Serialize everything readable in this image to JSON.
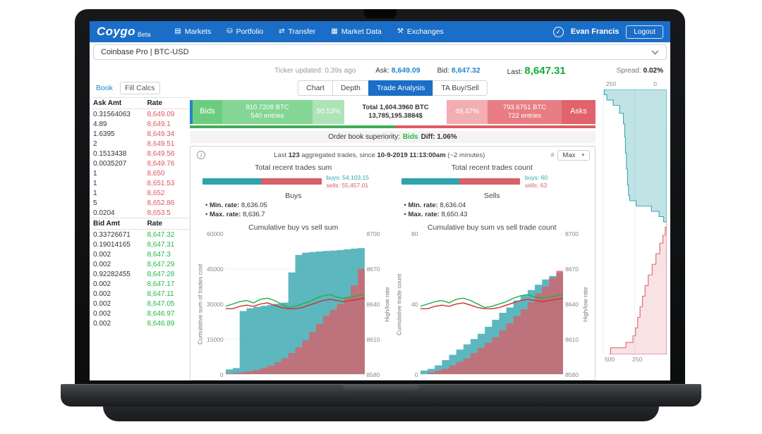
{
  "icons": {
    "check": "✓",
    "info": "i",
    "caret": "▾"
  },
  "nav": {
    "logo": "Coygo",
    "beta": "Beta",
    "items": [
      {
        "label": "Markets",
        "icon": "▤"
      },
      {
        "label": "Portfolio",
        "icon": "⛁"
      },
      {
        "label": "Transfer",
        "icon": "⇄"
      },
      {
        "label": "Market Data",
        "icon": "▦"
      },
      {
        "label": "Exchanges",
        "icon": "⚒"
      }
    ],
    "user": "Evan Francis",
    "logout": "Logout"
  },
  "selector": {
    "value": "Coinbase Pro | BTC-USD"
  },
  "ticker": {
    "updated": "Ticker updated: 0.39s ago",
    "ask_label": "Ask:",
    "ask_value": "8,649.09",
    "bid_label": "Bid:",
    "bid_value": "8,647.32",
    "last_label": "Last:",
    "last_value": "8,647.31",
    "spread_label": "Spread:",
    "spread_value": "0.02%"
  },
  "book": {
    "tabs": [
      "Book",
      "Fill Calcs"
    ],
    "ask_headers": [
      "Ask Amt",
      "Rate"
    ],
    "ask_rows": [
      [
        "0.31564063",
        "8,649.09"
      ],
      [
        "4.89",
        "8,649.1"
      ],
      [
        "1.6395",
        "8,649.34"
      ],
      [
        "2",
        "8,649.51"
      ],
      [
        "0.1513438",
        "8,649.56"
      ],
      [
        "0.0035207",
        "8,649.76"
      ],
      [
        "1",
        "8,650"
      ],
      [
        "1",
        "8,651.53"
      ],
      [
        "1",
        "8,652"
      ],
      [
        "5",
        "8,652.86"
      ],
      [
        "0.0204",
        "8,653.5"
      ]
    ],
    "bid_headers": [
      "Bid Amt",
      "Rate"
    ],
    "bid_rows": [
      [
        "0.33726671",
        "8,647.32"
      ],
      [
        "0.19014165",
        "8,647.31"
      ],
      [
        "0.002",
        "8,647.3"
      ],
      [
        "0.002",
        "8,647.29"
      ],
      [
        "0.92282455",
        "8,647.28"
      ],
      [
        "0.002",
        "8,647.17"
      ],
      [
        "0.002",
        "8,647.11"
      ],
      [
        "0.002",
        "8,647.05"
      ],
      [
        "0.002",
        "8,646.97"
      ],
      [
        "0.002",
        "8,646.89"
      ]
    ]
  },
  "main": {
    "tabs": [
      "Chart",
      "Depth",
      "Trade Analysis",
      "TA Buy/Sell"
    ],
    "active_tab": "Trade Analysis"
  },
  "superiority": {
    "bids_label": "Bids",
    "bids_btc": "810.7208 BTC",
    "bids_entries": "540 entries",
    "bids_pct": "50.53%",
    "total_btc": "Total 1,604.3960 BTC",
    "total_usd": "13,785,195.3884$",
    "asks_pct": "49.47%",
    "asks_btc": "793.6751 BTC",
    "asks_entries": "722 entries",
    "asks_label": "Asks",
    "text_prefix": "Order book superiority:",
    "text_side": "Bids",
    "text_diff": "Diff: 1.06%"
  },
  "analysis": {
    "header_parts": {
      "p1": "Last ",
      "n1": "123",
      "p2": " aggregated trades, since ",
      "n2": "10-9-2019 11:13:00am",
      "p3": " (~2 minutes)"
    },
    "hash_label": "#",
    "max_label": "Max",
    "sum": {
      "title": "Total recent trades sum",
      "buys": "buys: 54,103.15",
      "sells": "sells: 55,457.01",
      "label": "Buys",
      "bullets": [
        {
          "label": "Min. rate:",
          "value": "8,636.05"
        },
        {
          "label": "Max. rate:",
          "value": "8,636.7"
        }
      ]
    },
    "count": {
      "title": "Total recent trades count",
      "buys": "buys: 60",
      "sells": "sells: 63",
      "label": "Sells",
      "bullets": [
        {
          "label": "Min. rate:",
          "value": "8,636.04"
        },
        {
          "label": "Max. rate:",
          "value": "8,650.43"
        }
      ]
    }
  },
  "chart_data": [
    {
      "id": "cumulative_sum",
      "type": "area",
      "title": "Cumulative buy vs sell sum",
      "ylabel_left": "Cumulative sum of trades cost",
      "ylabel_right": "High/low rate",
      "ylim_left": [
        0,
        60000
      ],
      "yticks_left": [
        0,
        15000,
        30000,
        45000,
        60000
      ],
      "ylim_right": [
        8580,
        8700
      ],
      "yticks_right": [
        8580,
        8610,
        8640,
        8670,
        8700
      ],
      "final_buys": 54103.15,
      "final_sells": 55457.01,
      "series": [
        {
          "name": "cumulative_buy_sum",
          "kind": "area",
          "axis": "left",
          "color": "#2fa3ad",
          "values": [
            2000,
            2600,
            27000,
            28200,
            28800,
            29200,
            29600,
            30100,
            30600,
            43500,
            51000,
            52000,
            52300,
            52500,
            52700,
            52900,
            53100,
            53400,
            53700,
            53950,
            54103
          ]
        },
        {
          "name": "cumulative_sell_sum",
          "kind": "area",
          "axis": "left",
          "color": "#d95f69",
          "values": [
            300,
            500,
            800,
            1200,
            1800,
            2600,
            3600,
            5000,
            6800,
            9000,
            11500,
            14500,
            18000,
            21500,
            25000,
            27500,
            30000,
            33000,
            38000,
            45000,
            55457
          ]
        },
        {
          "name": "high_rate",
          "kind": "line",
          "axis": "right",
          "color": "#27b04b",
          "values": [
            8638,
            8640,
            8642,
            8643,
            8641,
            8644,
            8645,
            8643,
            8640,
            8637,
            8638,
            8640,
            8642,
            8645,
            8647,
            8648,
            8646,
            8645,
            8646,
            8647,
            8648
          ]
        },
        {
          "name": "low_rate",
          "kind": "line",
          "axis": "right",
          "color": "#d22f2f",
          "values": [
            8636,
            8636,
            8638,
            8639,
            8638,
            8640,
            8641,
            8639,
            8637,
            8636,
            8636,
            8637,
            8639,
            8641,
            8643,
            8644,
            8643,
            8642,
            8643,
            8644,
            8645
          ]
        }
      ]
    },
    {
      "id": "cumulative_count",
      "type": "area",
      "title": "Cumulative buy sum vs sell trade count",
      "ylabel_left": "Cumulative trade count",
      "ylabel_right": "High/low rate",
      "ylim_left": [
        0,
        80
      ],
      "yticks_left": [
        0,
        40,
        80
      ],
      "ylim_right": [
        8580,
        8700
      ],
      "yticks_right": [
        8580,
        8610,
        8640,
        8670,
        8700
      ],
      "final_buys": 60,
      "final_sells": 63,
      "series": [
        {
          "name": "cumulative_buy_count",
          "kind": "area",
          "axis": "left",
          "color": "#2fa3ad",
          "values": [
            2,
            3,
            5,
            8,
            11,
            14,
            17,
            20,
            23,
            27,
            31,
            35,
            38,
            42,
            45,
            48,
            51,
            54,
            56,
            58,
            60
          ]
        },
        {
          "name": "cumulative_sell_count",
          "kind": "area",
          "axis": "left",
          "color": "#d95f69",
          "values": [
            0,
            1,
            2,
            3,
            5,
            7,
            9,
            12,
            15,
            18,
            21,
            25,
            29,
            33,
            37,
            41,
            46,
            50,
            55,
            59,
            63
          ]
        },
        {
          "name": "high_rate",
          "kind": "line",
          "axis": "right",
          "color": "#27b04b",
          "values": [
            8638,
            8640,
            8642,
            8643,
            8641,
            8644,
            8645,
            8643,
            8640,
            8637,
            8638,
            8640,
            8642,
            8645,
            8647,
            8648,
            8646,
            8645,
            8646,
            8647,
            8648
          ]
        },
        {
          "name": "low_rate",
          "kind": "line",
          "axis": "right",
          "color": "#d22f2f",
          "values": [
            8636,
            8636,
            8638,
            8639,
            8638,
            8640,
            8641,
            8639,
            8637,
            8636,
            8636,
            8637,
            8639,
            8641,
            8643,
            8644,
            8643,
            8642,
            8643,
            8644,
            8645
          ]
        }
      ]
    },
    {
      "id": "order_book_depth",
      "type": "depth",
      "orientation": "vertical",
      "asks_scale_ticks": [
        250,
        0
      ],
      "bids_scale_ticks": [
        500,
        250
      ],
      "asks_color": "#2fa3ad",
      "bids_color": "#d95f69",
      "asks": [
        [
          0,
          245
        ],
        [
          0.02,
          235
        ],
        [
          0.04,
          210
        ],
        [
          0.06,
          185
        ],
        [
          0.09,
          170
        ],
        [
          0.13,
          165
        ],
        [
          0.18,
          162
        ],
        [
          0.24,
          158
        ],
        [
          0.3,
          154
        ],
        [
          0.36,
          150
        ],
        [
          0.4,
          145
        ],
        [
          0.42,
          120
        ],
        [
          0.44,
          60
        ],
        [
          0.46,
          30
        ],
        [
          0.48,
          12
        ],
        [
          0.5,
          0
        ]
      ],
      "bids": [
        [
          0.5,
          0
        ],
        [
          0.52,
          12
        ],
        [
          0.55,
          30
        ],
        [
          0.58,
          55
        ],
        [
          0.62,
          85
        ],
        [
          0.66,
          115
        ],
        [
          0.7,
          145
        ],
        [
          0.74,
          170
        ],
        [
          0.78,
          190
        ],
        [
          0.82,
          210
        ],
        [
          0.86,
          228
        ],
        [
          0.9,
          245
        ],
        [
          0.93,
          265
        ],
        [
          0.955,
          320
        ],
        [
          0.975,
          440
        ],
        [
          1,
          455
        ]
      ]
    }
  ]
}
